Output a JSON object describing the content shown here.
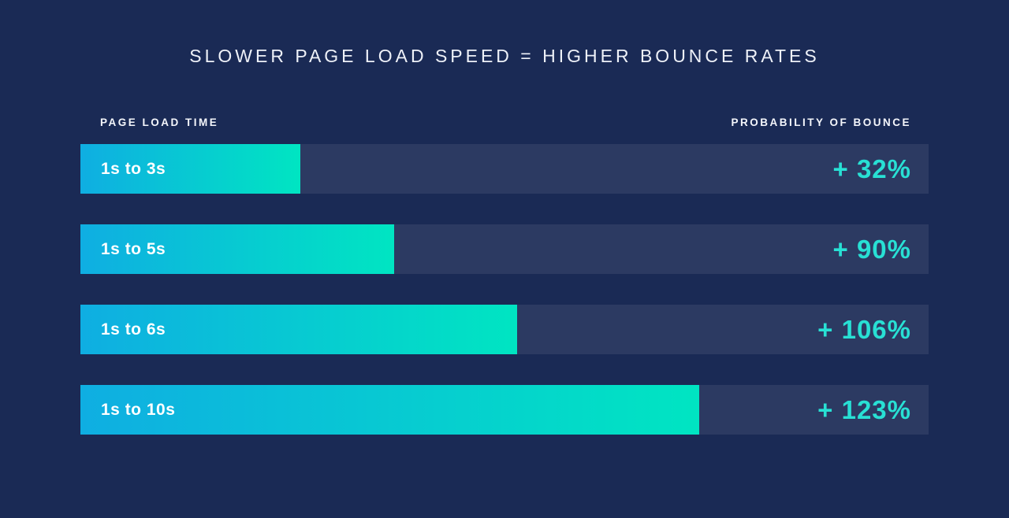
{
  "title": "SLOWER PAGE LOAD SPEED = HIGHER BOUNCE RATES",
  "headers": {
    "left": "PAGE LOAD TIME",
    "right": "PROBABILITY OF BOUNCE"
  },
  "colors": {
    "background": "#1A2A55",
    "track": "#2C3A62",
    "bar_gradient_start": "#0FAEE2",
    "bar_gradient_end": "#00E5C2",
    "value_text": "#28E0D4",
    "title_text": "#EEF1F8",
    "bar_label_text": "#FFFFFF"
  },
  "chart_data": {
    "type": "bar",
    "orientation": "horizontal",
    "title": "SLOWER PAGE LOAD SPEED = HIGHER BOUNCE RATES",
    "xlabel": "PAGE LOAD TIME",
    "ylabel": "PROBABILITY OF BOUNCE",
    "categories": [
      "1s to 3s",
      "1s to 5s",
      "1s to 6s",
      "1s to 10s"
    ],
    "values": [
      32,
      90,
      106,
      123
    ],
    "value_labels": [
      "+ 32%",
      "+ 90%",
      "+ 106%",
      "+ 123%"
    ],
    "bar_length_pct": [
      25.9,
      37.0,
      51.5,
      73.0
    ],
    "legend": false,
    "grid": false
  }
}
